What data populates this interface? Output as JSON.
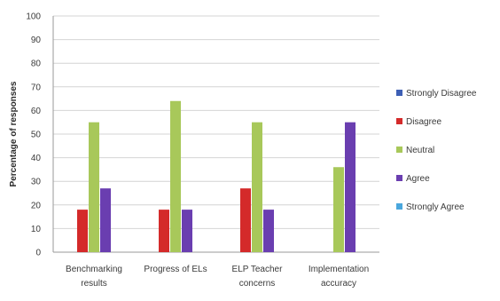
{
  "chart_data": {
    "type": "bar",
    "title": "",
    "xlabel": "",
    "ylabel": "Percentage of responses",
    "ylim": [
      0,
      100
    ],
    "yticks": [
      0,
      10,
      20,
      30,
      40,
      50,
      60,
      70,
      80,
      90,
      100
    ],
    "grid": true,
    "legend_position": "right",
    "categories": [
      [
        "Benchmarking",
        "results"
      ],
      [
        "Progress of ELs"
      ],
      [
        "ELP Teacher",
        "concerns"
      ],
      [
        "Implementation",
        "accuracy"
      ]
    ],
    "series": [
      {
        "name": "Strongly Disagree",
        "color": "#3d5fb5",
        "values": [
          0,
          0,
          0,
          0
        ]
      },
      {
        "name": "Disagree",
        "color": "#d42a2a",
        "values": [
          18,
          18,
          27,
          0
        ]
      },
      {
        "name": "Neutral",
        "color": "#a8c85a",
        "values": [
          55,
          64,
          55,
          36
        ]
      },
      {
        "name": "Agree",
        "color": "#6a3eb0",
        "values": [
          27,
          18,
          18,
          55
        ]
      },
      {
        "name": "Strongly Agree",
        "color": "#4aa7dd",
        "values": [
          0,
          0,
          0,
          0
        ]
      }
    ]
  }
}
